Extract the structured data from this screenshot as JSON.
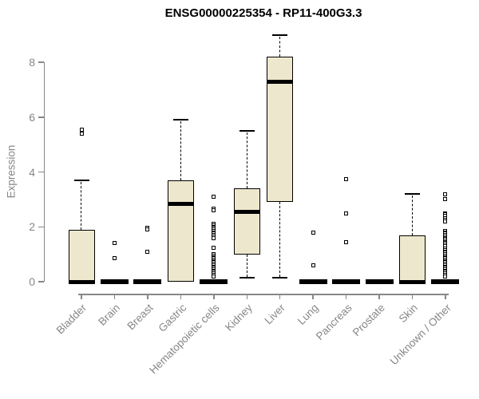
{
  "chart_data": {
    "type": "boxplot",
    "title": "ENSG00000225354 - RP11-400G3.3",
    "xlabel": "",
    "ylabel": "Expression",
    "ylim": [
      0,
      9.1
    ],
    "y_ticks": [
      0,
      2,
      4,
      6,
      8
    ],
    "grid": false,
    "legend": "none",
    "colors": {
      "box_fill": "#EDE8CD",
      "box_border": "#000000",
      "median": "#000000",
      "axis": "#878787",
      "title": "#000000"
    },
    "categories": [
      "Bladder",
      "Brain",
      "Breast",
      "Gastric",
      "Hematopoietic cells",
      "Kidney",
      "Liver",
      "Lung",
      "Pancreas",
      "Prostate",
      "Skin",
      "Unknown / Other"
    ],
    "series": [
      {
        "category": "Bladder",
        "whisker_low": 0,
        "q1": 0,
        "median": 0,
        "q3": 1.9,
        "whisker_high": 3.7,
        "outliers": [
          5.55,
          5.4
        ]
      },
      {
        "category": "Brain",
        "whisker_low": 0,
        "q1": 0,
        "median": 0,
        "q3": 0,
        "whisker_high": 0,
        "outliers": [
          1.4,
          0.85
        ]
      },
      {
        "category": "Breast",
        "whisker_low": 0,
        "q1": 0,
        "median": 0,
        "q3": 0,
        "whisker_high": 0,
        "outliers": [
          1.95,
          1.9,
          1.1
        ]
      },
      {
        "category": "Gastric",
        "whisker_low": 0,
        "q1": 0,
        "median": 2.85,
        "q3": 3.7,
        "whisker_high": 5.9,
        "outliers": []
      },
      {
        "category": "Hematopoietic cells",
        "whisker_low": 0,
        "q1": 0,
        "median": 0,
        "q3": 0,
        "whisker_high": 0,
        "outliers": [
          3.1,
          2.65,
          2.6,
          2.1,
          2.05,
          2.0,
          1.95,
          1.9,
          1.85,
          1.8,
          1.75,
          1.7,
          1.65,
          1.6,
          1.25,
          1.0,
          0.95,
          0.9,
          0.85,
          0.8,
          0.75,
          0.7,
          0.65,
          0.6,
          0.55,
          0.5,
          0.45,
          0.4,
          0.35,
          0.3,
          0.25,
          0.2
        ]
      },
      {
        "category": "Kidney",
        "whisker_low": 0.15,
        "q1": 1.0,
        "median": 2.55,
        "q3": 3.4,
        "whisker_high": 5.5,
        "outliers": []
      },
      {
        "category": "Liver",
        "whisker_low": 0.15,
        "q1": 2.9,
        "median": 7.3,
        "q3": 8.2,
        "whisker_high": 9.0,
        "outliers": []
      },
      {
        "category": "Lung",
        "whisker_low": 0,
        "q1": 0,
        "median": 0,
        "q3": 0,
        "whisker_high": 0,
        "outliers": [
          1.8,
          0.6
        ]
      },
      {
        "category": "Pancreas",
        "whisker_low": 0,
        "q1": 0,
        "median": 0,
        "q3": 0,
        "whisker_high": 0,
        "outliers": [
          3.75,
          2.5,
          1.45
        ]
      },
      {
        "category": "Prostate",
        "whisker_low": 0,
        "q1": 0,
        "median": 0,
        "q3": 0,
        "whisker_high": 0,
        "outliers": []
      },
      {
        "category": "Skin",
        "whisker_low": 0,
        "q1": 0,
        "median": 0,
        "q3": 1.7,
        "whisker_high": 3.2,
        "outliers": []
      },
      {
        "category": "Unknown / Other",
        "whisker_low": 0,
        "q1": 0,
        "median": 0,
        "q3": 0,
        "whisker_high": 0,
        "outliers": [
          3.2,
          3.0,
          2.5,
          2.45,
          2.4,
          2.3,
          2.25,
          2.2,
          1.85,
          1.8,
          1.75,
          1.7,
          1.65,
          1.6,
          1.55,
          1.5,
          1.45,
          1.4,
          1.35,
          1.3,
          1.2,
          1.15,
          1.1,
          1.05,
          1.0,
          0.95,
          0.9,
          0.85,
          0.8,
          0.75,
          0.7,
          0.65,
          0.6,
          0.55,
          0.5,
          0.45,
          0.4,
          0.35,
          0.3,
          0.25,
          0.2
        ]
      }
    ]
  }
}
